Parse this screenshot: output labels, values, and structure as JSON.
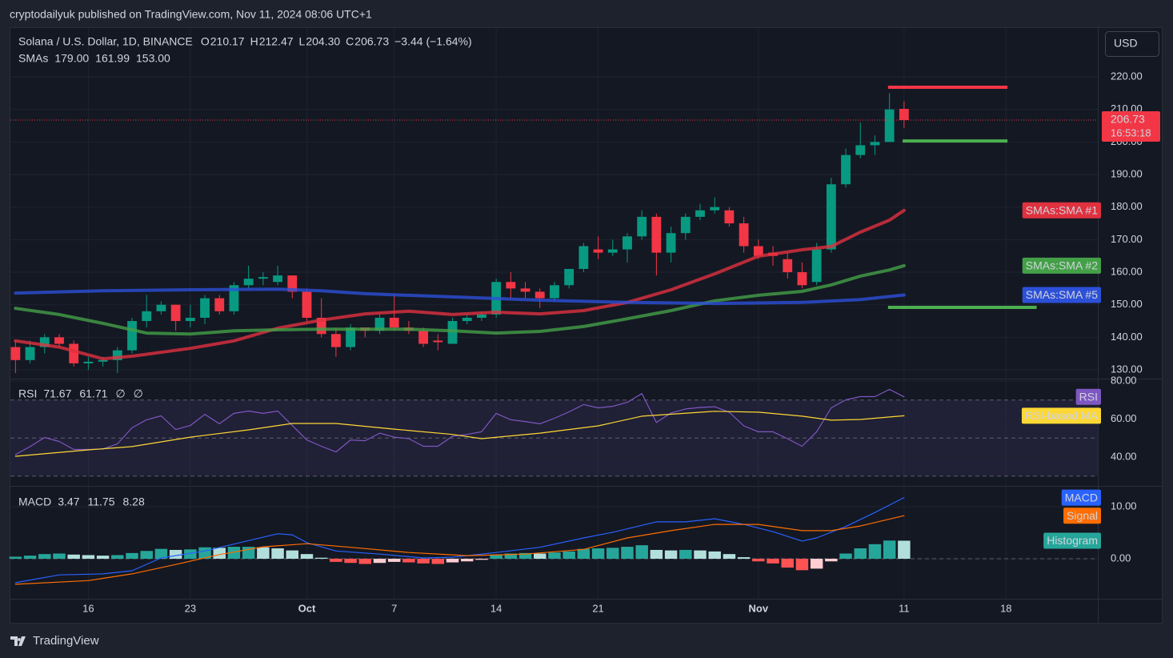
{
  "header": {
    "title": "cryptodailyuk published on TradingView.com, Nov 11, 2024 08:06 UTC+1",
    "currency": "USD",
    "footer": "TradingView"
  },
  "chart_data": [
    {
      "type": "candlestick",
      "legend": {
        "label": "Solana / U.S. Dollar, 1D, BINANCE",
        "ohlc": [
          {
            "key": "O",
            "value": "210.17"
          },
          {
            "key": "H",
            "value": "212.47"
          },
          {
            "key": "L",
            "value": "204.30"
          },
          {
            "key": "C",
            "value": "206.73"
          }
        ],
        "change": "−3.44 (−1.64%)"
      },
      "indicator_legend": {
        "label": "SMAs",
        "values": [
          "179.00",
          "161.99",
          "153.00"
        ]
      },
      "up_color": "#089981",
      "down_color": "#f23645",
      "open": [
        137,
        133,
        137,
        140,
        138,
        132,
        132.5,
        133,
        136,
        145,
        148,
        150,
        145,
        146,
        152,
        148,
        156,
        158,
        157,
        159,
        154,
        146,
        141,
        137,
        143,
        142,
        146,
        143,
        142,
        139,
        138,
        145,
        146,
        147,
        157,
        155,
        154,
        152,
        156,
        161,
        167,
        166,
        167,
        171,
        177,
        166,
        172,
        177,
        179,
        179,
        175,
        168,
        166,
        164,
        160,
        157,
        167,
        187,
        196,
        199,
        200,
        210.17
      ],
      "high": [
        139,
        139,
        141,
        141,
        139,
        134,
        134,
        137,
        146,
        153,
        151,
        150,
        150,
        153,
        153,
        157,
        162,
        160,
        162,
        159,
        155,
        152,
        143,
        144,
        143,
        147,
        153,
        145,
        143,
        141,
        146,
        147,
        148,
        158,
        160,
        157,
        155,
        157,
        161,
        169,
        171,
        170,
        172,
        179,
        178,
        174,
        178,
        181,
        183,
        180,
        177,
        170,
        168,
        166,
        163,
        169,
        189,
        198,
        206,
        202,
        215,
        212.47
      ],
      "low": [
        129,
        132,
        135,
        137,
        131,
        130,
        131,
        129,
        135,
        143,
        147,
        142,
        143,
        144,
        147,
        147,
        155,
        156,
        156,
        152,
        145,
        140,
        134,
        136,
        140,
        141,
        142,
        141,
        137,
        136,
        138,
        144,
        145,
        146,
        152,
        152,
        149,
        151,
        155,
        160,
        164,
        165,
        163,
        170,
        159,
        163,
        170,
        176,
        178,
        174,
        166,
        164,
        162,
        158,
        155,
        156,
        166,
        186,
        195,
        196,
        200,
        204.3
      ],
      "close": [
        133,
        137,
        140,
        138,
        132,
        132.5,
        133,
        136,
        145,
        148,
        150,
        145,
        146,
        152,
        148,
        156,
        158,
        158.5,
        159,
        154,
        146,
        141,
        137,
        143,
        142,
        146,
        143,
        142,
        138,
        138.5,
        145,
        146,
        147,
        157,
        155,
        154,
        152,
        156,
        161,
        168,
        166,
        167,
        171,
        177,
        166,
        172,
        177,
        179,
        180,
        175,
        168,
        165,
        165,
        160,
        156,
        167,
        187,
        196,
        199,
        200,
        210,
        206.73
      ],
      "series": [
        {
          "name": "SMAs:SMA #1",
          "color": "#e0313f",
          "width": 4,
          "x": [
            0,
            3,
            6,
            8,
            12,
            15,
            18,
            21,
            24,
            27,
            30,
            33,
            36,
            39,
            42,
            45,
            48,
            51,
            54,
            56,
            58,
            60,
            61
          ],
          "values": [
            138.9,
            137,
            133.4,
            134.2,
            136.6,
            138.9,
            142.8,
            145.3,
            147.2,
            148,
            147,
            147.7,
            147.2,
            148.2,
            150.7,
            154.6,
            159.5,
            164.9,
            166.9,
            167.9,
            172.3,
            176,
            179
          ]
        },
        {
          "name": "SMAs:SMA #2",
          "color": "#43a047",
          "width": 4,
          "x": [
            0,
            3,
            6,
            9,
            12,
            15,
            18,
            21,
            24,
            27,
            30,
            33,
            36,
            39,
            42,
            45,
            48,
            51,
            54,
            56,
            58,
            60,
            61
          ],
          "values": [
            148.9,
            147,
            144.3,
            141.3,
            141,
            142,
            142.3,
            142.5,
            142.5,
            142.5,
            142,
            141.3,
            141.8,
            143.3,
            145.7,
            148.2,
            151.2,
            152.9,
            154.1,
            156.1,
            158.8,
            160.7,
            161.99
          ]
        },
        {
          "name": "SMAs:SMA #5",
          "color": "#2c50d8",
          "width": 4,
          "x": [
            0,
            6,
            12,
            18,
            21,
            24,
            30,
            36,
            42,
            48,
            54,
            58,
            61
          ],
          "values": [
            153.6,
            154.3,
            154.6,
            154.8,
            154.3,
            153.4,
            152.4,
            151.4,
            150.7,
            150.4,
            150.7,
            151.6,
            153
          ]
        }
      ],
      "levels": [
        {
          "value": 216.8,
          "color": "#f23645",
          "x": [
            59.9,
            68.1
          ]
        },
        {
          "value": 200.3,
          "color": "#4caf50",
          "x": [
            60.9,
            68.1
          ]
        },
        {
          "value": 149.2,
          "color": "#4caf50",
          "x": [
            59.9,
            70.1
          ]
        }
      ],
      "last_price": {
        "value": 206.73,
        "countdown": "16:53:18"
      },
      "xlim": [
        -0.35,
        74.3
      ],
      "ylim": [
        127.55,
        235.0
      ],
      "yticks": [
        {
          "value": 130,
          "label": "130.00"
        },
        {
          "value": 140,
          "label": "140.00"
        },
        {
          "value": 150,
          "label": "150.00"
        },
        {
          "value": 160,
          "label": "160.00"
        },
        {
          "value": 170,
          "label": "170.00"
        },
        {
          "value": 180,
          "label": "180.00"
        },
        {
          "value": 190,
          "label": "190.00"
        },
        {
          "value": 200,
          "label": "200.00"
        },
        {
          "value": 210,
          "label": "210.00"
        },
        {
          "value": 220,
          "label": "220.00"
        }
      ],
      "grid": true
    },
    {
      "type": "line",
      "legend": {
        "label": "RSI",
        "values": [
          "71.67",
          "61.71",
          "∅",
          "∅"
        ]
      },
      "series": [
        {
          "name": "RSI",
          "color": "#7e57c2",
          "width": 1.2,
          "values": [
            41.3,
            45.5,
            50.3,
            48.2,
            44,
            44,
            44.2,
            47,
            55.4,
            59.6,
            61.7,
            54.5,
            56.6,
            62.5,
            57.5,
            63,
            64.2,
            63,
            64.2,
            56.6,
            49,
            45.7,
            42.7,
            49,
            48.6,
            52.6,
            50.5,
            49.7,
            45.7,
            45.7,
            51,
            51.9,
            53.3,
            63,
            59.6,
            58.7,
            57.5,
            60.4,
            63.8,
            67.6,
            65.9,
            66.7,
            68.8,
            73.4,
            58.2,
            63.2,
            65.3,
            66.1,
            66.5,
            63.6,
            56.4,
            53.3,
            53.3,
            49.7,
            45.7,
            53.3,
            65.9,
            70.1,
            71.8,
            71.8,
            75.6,
            71.67
          ]
        },
        {
          "name": "RSI-based MA",
          "color": "#fdd835",
          "width": 1.2,
          "x": [
            0,
            5,
            8,
            12,
            16,
            19,
            22,
            26,
            30,
            32,
            36,
            40,
            43,
            48,
            51,
            54,
            56,
            58,
            61
          ],
          "values": [
            40.4,
            43.8,
            45.5,
            50.5,
            54.3,
            57.7,
            57.7,
            54.7,
            51.9,
            49.7,
            52.6,
            56.4,
            61.5,
            64.1,
            63.6,
            61.5,
            59.4,
            59.8,
            61.71
          ]
        }
      ],
      "hlines": [
        70,
        50,
        30
      ],
      "band": [
        30,
        70
      ],
      "band_color": "rgba(126,87,194,0.12)",
      "xlim": [
        -0.35,
        74.3
      ],
      "ylim": [
        25.26,
        80.84
      ],
      "yticks": [
        {
          "value": 40,
          "label": "40.00"
        },
        {
          "value": 60,
          "label": "60.00"
        },
        {
          "value": 80,
          "label": "80.00"
        }
      ],
      "grid": true
    },
    {
      "type": "macd",
      "legend": {
        "label": "MACD",
        "values": [
          "3.47",
          "11.75",
          "8.28"
        ]
      },
      "series": [
        {
          "name": "Histogram",
          "style": "histogram",
          "color": "#26a69a",
          "colors": {
            "up_rising": "#26a69a",
            "up_falling": "#b2dfdb",
            "down_rising": "#ffcdd2",
            "down_falling": "#ff5252"
          },
          "values": [
            0.4,
            0.6,
            0.9,
            1.0,
            0.8,
            0.7,
            0.6,
            0.7,
            1.1,
            1.5,
            1.9,
            1.7,
            1.8,
            2.2,
            2.1,
            2.3,
            2.3,
            2.2,
            2.0,
            1.6,
            0.9,
            0.2,
            -0.6,
            -0.8,
            -1.0,
            -0.8,
            -0.6,
            -0.7,
            -0.9,
            -1.0,
            -0.7,
            -0.5,
            -0.2,
            0.8,
            1.0,
            1.1,
            1.0,
            1.2,
            1.4,
            1.9,
            2.0,
            2.1,
            2.3,
            2.6,
            1.7,
            1.6,
            1.7,
            1.6,
            1.4,
            0.9,
            0.3,
            -0.5,
            -0.9,
            -1.7,
            -2.2,
            -1.9,
            -0.5,
            1.0,
            2.0,
            2.8,
            3.5,
            3.47
          ]
        },
        {
          "name": "MACD",
          "color": "#2962ff",
          "width": 1.2,
          "x": [
            0,
            3,
            6,
            8,
            10,
            13,
            16,
            18,
            19,
            20,
            22,
            25,
            28,
            30,
            33,
            36,
            39,
            41,
            44,
            46,
            48,
            50,
            52,
            54,
            55,
            57,
            59,
            61
          ],
          "values": [
            -4.6,
            -3.1,
            -2.9,
            -2.3,
            0.15,
            1.5,
            3.5,
            4.8,
            4.6,
            3.1,
            1.5,
            0.9,
            0.15,
            0.3,
            1.2,
            2.2,
            4,
            5.1,
            7.1,
            7.1,
            7.7,
            6.6,
            5.2,
            3.4,
            4,
            6.2,
            8.9,
            11.75
          ]
        },
        {
          "name": "Signal",
          "color": "#ff6d00",
          "width": 1.2,
          "x": [
            0,
            5,
            8,
            11,
            14,
            17,
            20,
            23,
            27,
            31,
            35,
            39,
            42,
            45,
            48,
            51,
            54,
            56,
            58,
            61
          ],
          "values": [
            -4.9,
            -4.2,
            -2.9,
            -1.1,
            0.8,
            2.3,
            2.9,
            2.2,
            1.2,
            0.6,
            0.9,
            1.8,
            4,
            5.4,
            6.6,
            6.6,
            5.4,
            5.4,
            6.3,
            8.28
          ]
        }
      ],
      "hlines": [
        0
      ],
      "xlim": [
        -0.35,
        74.3
      ],
      "ylim": [
        -7.69,
        13.85
      ],
      "yticks": [
        {
          "value": 0,
          "label": "0.00"
        },
        {
          "value": 10,
          "label": "10.00"
        }
      ],
      "xticks": [
        {
          "value": 5,
          "label": "16"
        },
        {
          "value": 12,
          "label": "23"
        },
        {
          "value": 20,
          "label": "Oct"
        },
        {
          "value": 26,
          "label": "7"
        },
        {
          "value": 33,
          "label": "14"
        },
        {
          "value": 40,
          "label": "21"
        },
        {
          "value": 51,
          "label": "Nov"
        },
        {
          "value": 61,
          "label": "11"
        },
        {
          "value": 68,
          "label": "18"
        }
      ],
      "grid": true
    }
  ]
}
